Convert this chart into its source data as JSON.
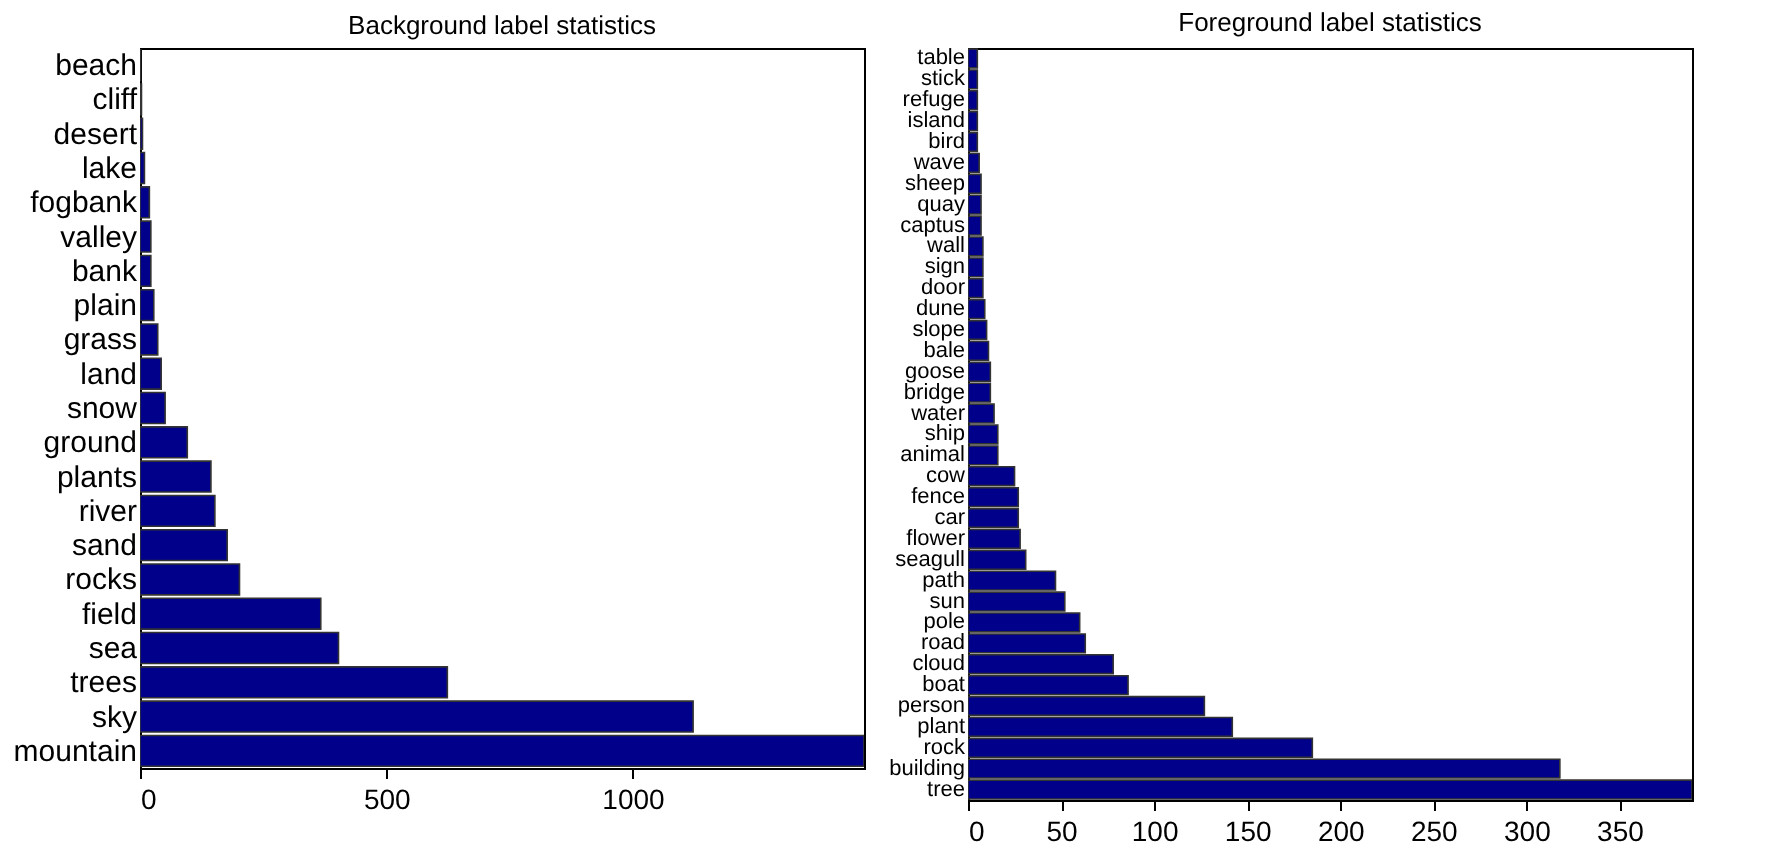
{
  "chart_data": [
    {
      "type": "bar",
      "orientation": "horizontal",
      "title": "Background label statistics",
      "categories": [
        "beach",
        "cliff",
        "desert",
        "lake",
        "fogbank",
        "valley",
        "bank",
        "plain",
        "grass",
        "land",
        "snow",
        "ground",
        "plants",
        "river",
        "sand",
        "rocks",
        "field",
        "sea",
        "trees",
        "sky",
        "mountain"
      ],
      "values": [
        1,
        3,
        5,
        9,
        19,
        22,
        22,
        28,
        36,
        43,
        51,
        96,
        144,
        152,
        177,
        202,
        367,
        403,
        624,
        1123,
        1470
      ],
      "color": "#00008b",
      "xlim": [
        0,
        1470
      ],
      "xticks": [
        0,
        500,
        1000
      ],
      "grid": false
    },
    {
      "type": "bar",
      "orientation": "horizontal",
      "title": "Foreground label statistics",
      "categories": [
        "table",
        "stick",
        "refuge",
        "island",
        "bird",
        "wave",
        "sheep",
        "quay",
        "captus",
        "wall",
        "sign",
        "door",
        "dune",
        "slope",
        "bale",
        "goose",
        "bridge",
        "water",
        "ship",
        "animal",
        "cow",
        "fence",
        "car",
        "flower",
        "seagull",
        "path",
        "sun",
        "pole",
        "road",
        "cloud",
        "boat",
        "person",
        "plant",
        "rock",
        "building",
        "tree"
      ],
      "values": [
        5,
        5,
        5,
        5,
        5,
        6,
        7,
        7,
        7,
        8,
        8,
        8,
        9,
        10,
        11,
        12,
        12,
        14,
        16,
        16,
        25,
        27,
        27,
        28,
        31,
        47,
        52,
        60,
        63,
        78,
        86,
        127,
        142,
        185,
        318,
        389
      ],
      "color": "#00008b",
      "xlim": [
        0,
        389
      ],
      "xticks": [
        0,
        50,
        100,
        150,
        200,
        250,
        300,
        350
      ],
      "grid": false
    }
  ]
}
